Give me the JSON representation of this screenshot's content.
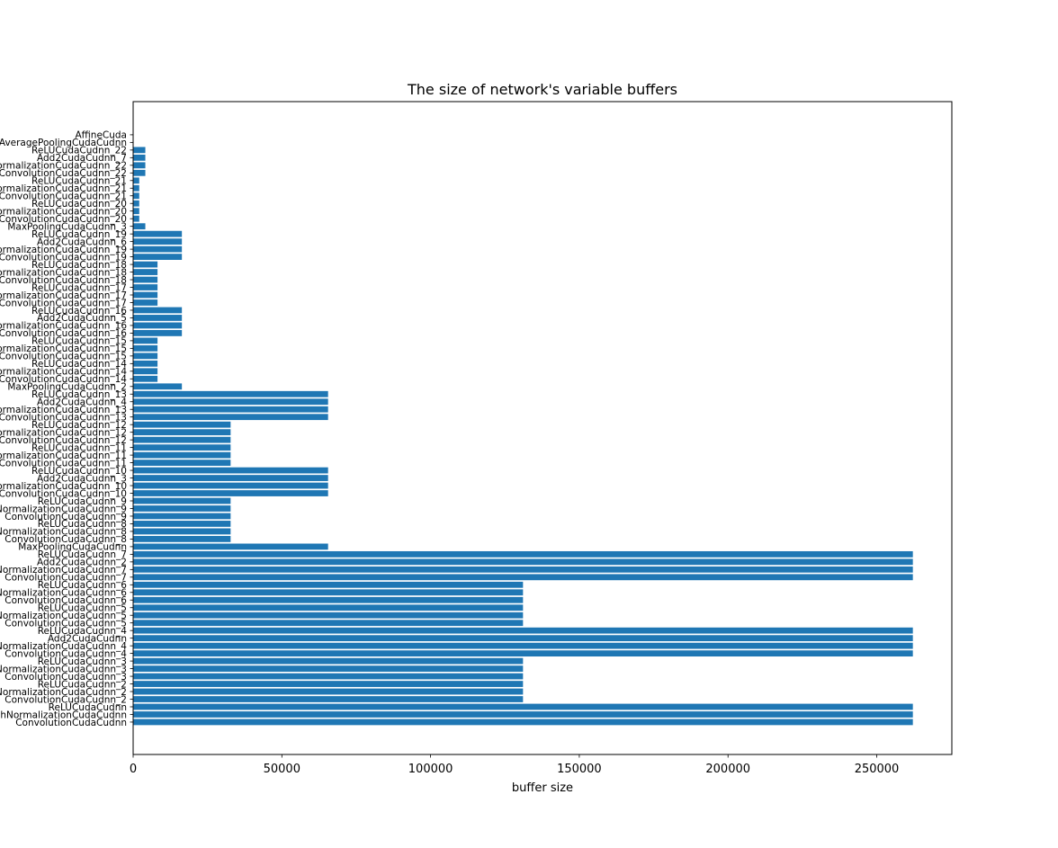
{
  "chart_data": {
    "type": "bar",
    "orientation": "horizontal",
    "title": "The size of network's variable buffers",
    "xlabel": "buffer size",
    "ylabel": "",
    "xlim": [
      0,
      275251
    ],
    "xticks": [
      0,
      50000,
      100000,
      150000,
      200000,
      250000
    ],
    "xtick_labels": [
      "0",
      "50000",
      "100000",
      "150000",
      "200000",
      "250000"
    ],
    "grid": false,
    "color": "#1f77b4",
    "categories": [
      "ConvolutionCudaCudnn",
      "BatchNormalizationCudaCudnn",
      "ReLUCudaCudnn",
      "ConvolutionCudaCudnn_2",
      "BatchNormalizationCudaCudnn_2",
      "ReLUCudaCudnn_2",
      "ConvolutionCudaCudnn_3",
      "BatchNormalizationCudaCudnn_3",
      "ReLUCudaCudnn_3",
      "ConvolutionCudaCudnn_4",
      "BatchNormalizationCudaCudnn_4",
      "Add2CudaCudnn",
      "ReLUCudaCudnn_4",
      "ConvolutionCudaCudnn_5",
      "BatchNormalizationCudaCudnn_5",
      "ReLUCudaCudnn_5",
      "ConvolutionCudaCudnn_6",
      "BatchNormalizationCudaCudnn_6",
      "ReLUCudaCudnn_6",
      "ConvolutionCudaCudnn_7",
      "BatchNormalizationCudaCudnn_7",
      "Add2CudaCudnn_2",
      "ReLUCudaCudnn_7",
      "MaxPoolingCudaCudnn",
      "ConvolutionCudaCudnn_8",
      "BatchNormalizationCudaCudnn_8",
      "ReLUCudaCudnn_8",
      "ConvolutionCudaCudnn_9",
      "BatchNormalizationCudaCudnn_9",
      "ReLUCudaCudnn_9",
      "ConvolutionCudaCudnn_10",
      "BatchNormalizationCudaCudnn_10",
      "Add2CudaCudnn_3",
      "ReLUCudaCudnn_10",
      "ConvolutionCudaCudnn_11",
      "BatchNormalizationCudaCudnn_11",
      "ReLUCudaCudnn_11",
      "ConvolutionCudaCudnn_12",
      "BatchNormalizationCudaCudnn_12",
      "ReLUCudaCudnn_12",
      "ConvolutionCudaCudnn_13",
      "BatchNormalizationCudaCudnn_13",
      "Add2CudaCudnn_4",
      "ReLUCudaCudnn_13",
      "MaxPoolingCudaCudnn_2",
      "ConvolutionCudaCudnn_14",
      "BatchNormalizationCudaCudnn_14",
      "ReLUCudaCudnn_14",
      "ConvolutionCudaCudnn_15",
      "BatchNormalizationCudaCudnn_15",
      "ReLUCudaCudnn_15",
      "ConvolutionCudaCudnn_16",
      "BatchNormalizationCudaCudnn_16",
      "Add2CudaCudnn_5",
      "ReLUCudaCudnn_16",
      "ConvolutionCudaCudnn_17",
      "BatchNormalizationCudaCudnn_17",
      "ReLUCudaCudnn_17",
      "ConvolutionCudaCudnn_18",
      "BatchNormalizationCudaCudnn_18",
      "ReLUCudaCudnn_18",
      "ConvolutionCudaCudnn_19",
      "BatchNormalizationCudaCudnn_19",
      "Add2CudaCudnn_6",
      "ReLUCudaCudnn_19",
      "MaxPoolingCudaCudnn_3",
      "ConvolutionCudaCudnn_20",
      "BatchNormalizationCudaCudnn_20",
      "ReLUCudaCudnn_20",
      "ConvolutionCudaCudnn_21",
      "BatchNormalizationCudaCudnn_21",
      "ReLUCudaCudnn_21",
      "ConvolutionCudaCudnn_22",
      "BatchNormalizationCudaCudnn_22",
      "Add2CudaCudnn_7",
      "ReLUCudaCudnn_22",
      "AveragePoolingCudaCudnn",
      "AffineCuda"
    ],
    "values": [
      262144,
      262144,
      262144,
      131072,
      131072,
      131072,
      131072,
      131072,
      131072,
      262144,
      262144,
      262144,
      262144,
      131072,
      131072,
      131072,
      131072,
      131072,
      131072,
      262144,
      262144,
      262144,
      262144,
      65536,
      32768,
      32768,
      32768,
      32768,
      32768,
      32768,
      65536,
      65536,
      65536,
      65536,
      32768,
      32768,
      32768,
      32768,
      32768,
      32768,
      65536,
      65536,
      65536,
      65536,
      16384,
      8192,
      8192,
      8192,
      8192,
      8192,
      8192,
      16384,
      16384,
      16384,
      16384,
      8192,
      8192,
      8192,
      8192,
      8192,
      8192,
      16384,
      16384,
      16384,
      16384,
      4096,
      2048,
      2048,
      2048,
      2048,
      2048,
      2048,
      4096,
      4096,
      4096,
      4096,
      64,
      10
    ]
  }
}
